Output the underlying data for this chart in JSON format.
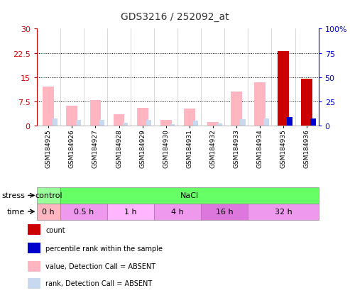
{
  "title": "GDS3216 / 252092_at",
  "samples": [
    "GSM184925",
    "GSM184926",
    "GSM184927",
    "GSM184928",
    "GSM184929",
    "GSM184930",
    "GSM184931",
    "GSM184932",
    "GSM184933",
    "GSM184934",
    "GSM184935",
    "GSM184936"
  ],
  "value_absent": [
    12.0,
    6.2,
    7.8,
    3.5,
    5.5,
    1.8,
    5.2,
    1.2,
    10.5,
    13.5,
    0.0,
    0.0
  ],
  "rank_absent": [
    7.0,
    5.8,
    5.8,
    2.8,
    5.8,
    1.3,
    5.5,
    2.0,
    6.8,
    7.0,
    0.0,
    0.0
  ],
  "count_present": [
    0.0,
    0.0,
    0.0,
    0.0,
    0.0,
    0.0,
    0.0,
    0.0,
    0.0,
    0.0,
    23.0,
    14.5
  ],
  "percentile_present": [
    0.0,
    0.0,
    0.0,
    0.0,
    0.0,
    0.0,
    0.0,
    0.0,
    0.0,
    0.0,
    9.0,
    7.5
  ],
  "left_ylim": [
    0,
    30
  ],
  "right_ylim": [
    0,
    100
  ],
  "left_yticks": [
    0,
    7.5,
    15,
    22.5,
    30
  ],
  "right_yticks": [
    0,
    25,
    50,
    75,
    100
  ],
  "left_ytick_labels": [
    "0",
    "7.5",
    "15",
    "22.5",
    "30"
  ],
  "right_ytick_labels": [
    "0",
    "25",
    "50",
    "75",
    "100%"
  ],
  "color_value_absent": "#FFB6C1",
  "color_rank_absent": "#C8D8EE",
  "color_count": "#CC0000",
  "color_percentile": "#0000CC",
  "stress_groups": [
    {
      "label": "control",
      "start": 0,
      "end": 1,
      "color": "#99FF99"
    },
    {
      "label": "NaCl",
      "start": 1,
      "end": 12,
      "color": "#66FF66"
    }
  ],
  "time_groups": [
    {
      "label": "0 h",
      "start": 0,
      "end": 1,
      "color": "#FFB6C1"
    },
    {
      "label": "0.5 h",
      "start": 1,
      "end": 3,
      "color": "#EE99EE"
    },
    {
      "label": "1 h",
      "start": 3,
      "end": 5,
      "color": "#FFB6FF"
    },
    {
      "label": "4 h",
      "start": 5,
      "end": 7,
      "color": "#EE99EE"
    },
    {
      "label": "16 h",
      "start": 7,
      "end": 9,
      "color": "#DD77DD"
    },
    {
      "label": "32 h",
      "start": 9,
      "end": 12,
      "color": "#EE99EE"
    }
  ],
  "legend_items": [
    {
      "label": "count",
      "color": "#CC0000"
    },
    {
      "label": "percentile rank within the sample",
      "color": "#0000CC"
    },
    {
      "label": "value, Detection Call = ABSENT",
      "color": "#FFB6C1"
    },
    {
      "label": "rank, Detection Call = ABSENT",
      "color": "#C8D8EE"
    }
  ],
  "stress_label": "stress",
  "time_label": "time",
  "bar_width": 0.32,
  "title_color": "#333333",
  "left_axis_color": "#CC0000",
  "right_axis_color": "#0000CC"
}
